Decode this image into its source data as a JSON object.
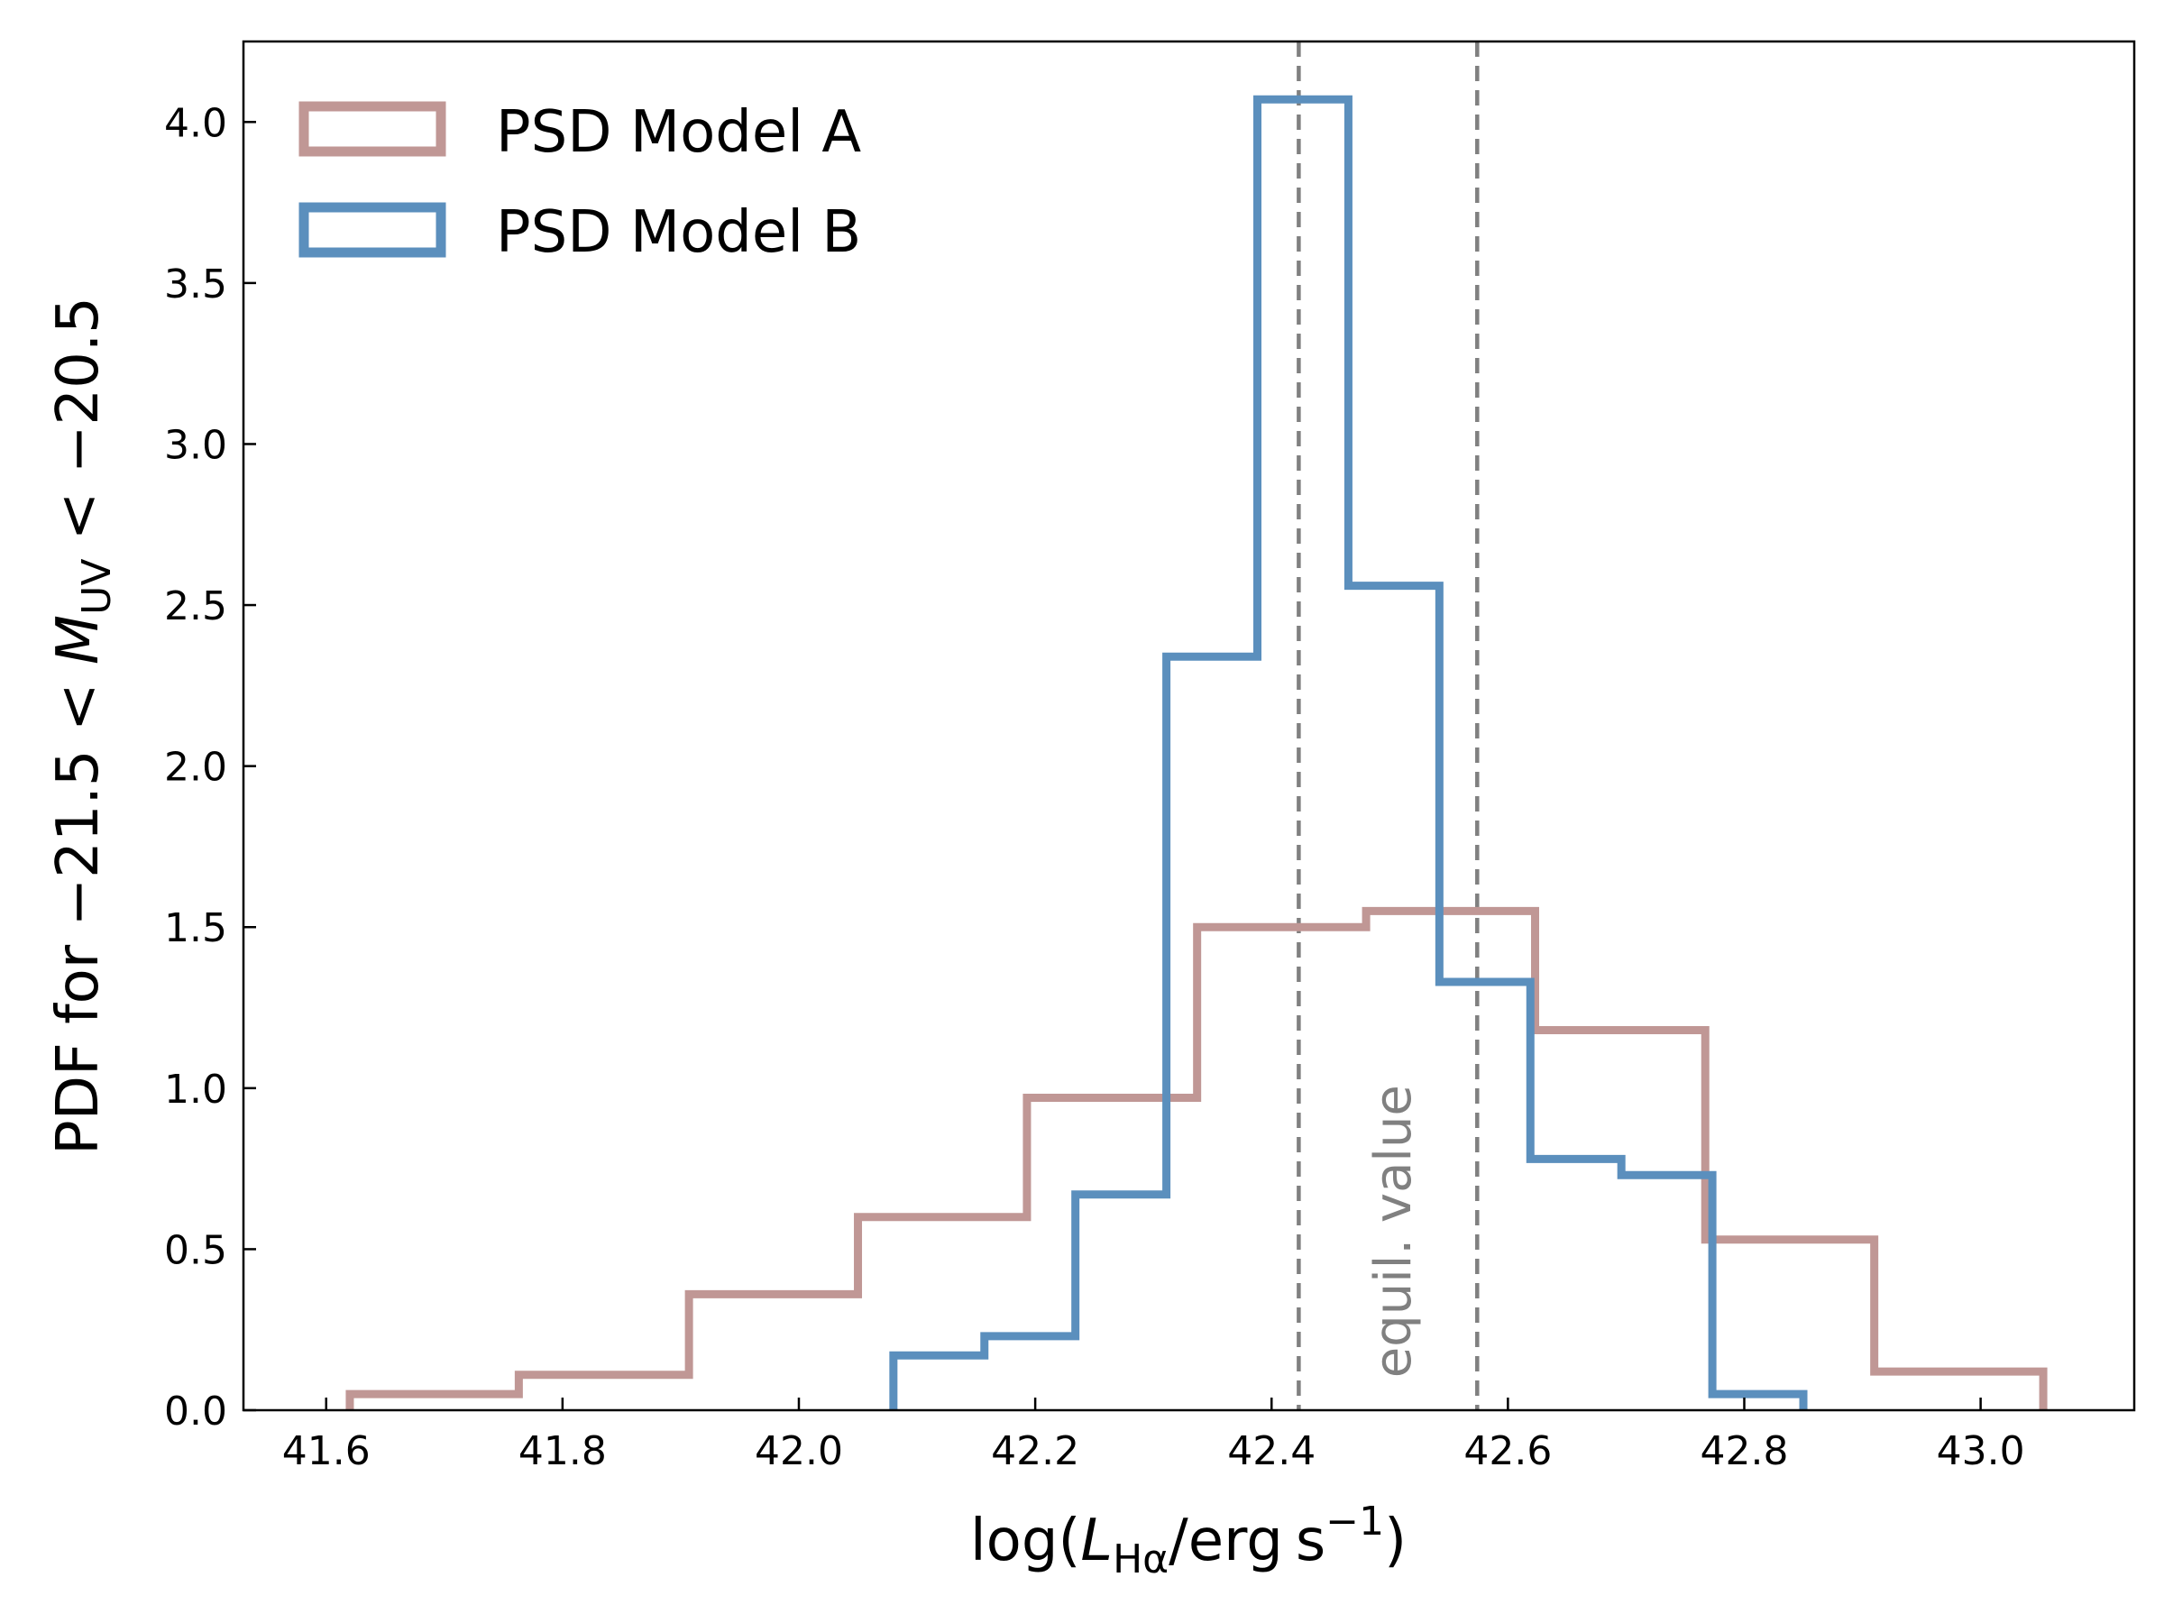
{
  "chart_data": {
    "type": "histogram-step",
    "title": "",
    "xlabel": {
      "prefix": "log(",
      "symbol": "L",
      "subscript": "Hα",
      "slash": "/",
      "unit": "erg",
      "unit2": "s",
      "superscript": "−1",
      "suffix": ")"
    },
    "ylabel": {
      "prefix": "PDF for −21.5 < ",
      "symbol": "M",
      "subscript": "UV",
      "suffix": " < −20.5"
    },
    "xlim": [
      41.53,
      43.13
    ],
    "ylim": [
      0.0,
      4.25
    ],
    "xticks": [
      41.6,
      41.8,
      42.0,
      42.2,
      42.4,
      42.6,
      42.8,
      43.0
    ],
    "xtick_labels": [
      "41.6",
      "41.8",
      "42.0",
      "42.2",
      "42.4",
      "42.6",
      "42.8",
      "43.0"
    ],
    "yticks": [
      0.0,
      0.5,
      1.0,
      1.5,
      2.0,
      2.5,
      3.0,
      3.5,
      4.0
    ],
    "ytick_labels": [
      "0.0",
      "0.5",
      "1.0",
      "1.5",
      "2.0",
      "2.5",
      "3.0",
      "3.5",
      "4.0"
    ],
    "grid": false,
    "legend_position": "top-left",
    "series": [
      {
        "name": "PSD Model A",
        "color": "#c09795",
        "edges": [
          41.62,
          41.763,
          41.907,
          42.05,
          42.193,
          42.337,
          42.48,
          42.623,
          42.767,
          42.91,
          43.053
        ],
        "values": [
          0.05,
          0.11,
          0.36,
          0.6,
          0.97,
          1.5,
          1.55,
          1.18,
          0.53,
          0.12
        ]
      },
      {
        "name": "PSD Model B",
        "color": "#5b8fbd",
        "edges": [
          42.08,
          42.157,
          42.234,
          42.311,
          42.388,
          42.465,
          42.542,
          42.619,
          42.696,
          42.773,
          42.85
        ],
        "values": [
          0.17,
          0.23,
          0.67,
          2.34,
          4.07,
          2.56,
          1.33,
          0.78,
          0.73,
          0.05
        ]
      }
    ],
    "vlines": [
      {
        "x": 42.423,
        "style": "dashed",
        "color": "#808080"
      },
      {
        "x": 42.574,
        "style": "dashed",
        "color": "#808080"
      }
    ],
    "annotations": [
      {
        "text": "equil. value",
        "x": 42.502,
        "y": 0.1,
        "rotation": "vertical",
        "color": "#808080"
      }
    ]
  }
}
